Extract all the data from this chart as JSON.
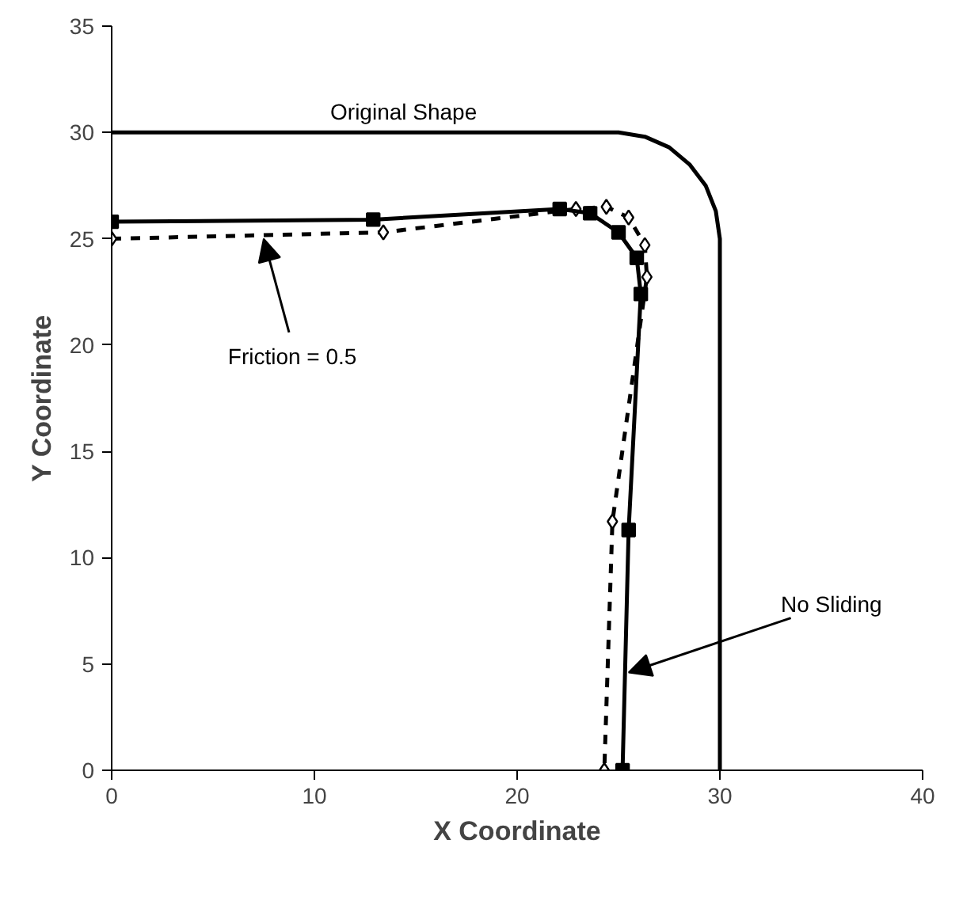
{
  "chart_data": {
    "type": "line",
    "xlabel": "X Coordinate",
    "ylabel": "Y Coordinate",
    "xlim": [
      0,
      40
    ],
    "ylim": [
      0,
      35
    ],
    "xticks": [
      0,
      10,
      20,
      30,
      40
    ],
    "yticks": [
      0,
      5,
      10,
      15,
      20,
      25,
      30,
      35
    ],
    "grid": false,
    "series": [
      {
        "color": "#000000",
        "marker": "none",
        "line_style": "solid",
        "x": [
          0,
          25,
          26.3,
          27.5,
          28.5,
          29.3,
          29.8,
          30,
          30,
          30
        ],
        "values": [
          30,
          30,
          29.8,
          29.3,
          28.5,
          27.5,
          26.3,
          25,
          0,
          0
        ]
      },
      {
        "color": "#000000",
        "marker": "diamond",
        "line_style": "dashed",
        "x": [
          0,
          13.4,
          22.9,
          24.4,
          25.5,
          26.3,
          26.4,
          24.7,
          24.3
        ],
        "values": [
          25,
          25.3,
          26.4,
          26.5,
          26.0,
          24.7,
          23.2,
          11.7,
          0
        ]
      },
      {
        "color": "#000000",
        "marker": "square",
        "line_style": "solid",
        "x": [
          0,
          12.9,
          22.1,
          23.6,
          25.0,
          25.9,
          26.1,
          25.5,
          25.2
        ],
        "values": [
          25.8,
          25.9,
          26.4,
          26.2,
          25.3,
          24.1,
          22.4,
          11.3,
          0
        ]
      }
    ],
    "annotations": [
      "Original Shape",
      {
        "text": "Friction  = 0.5",
        "x": 7.5,
        "y": 25
      },
      {
        "text": "No Sliding",
        "x": 25.5,
        "y": 4.6
      }
    ]
  }
}
